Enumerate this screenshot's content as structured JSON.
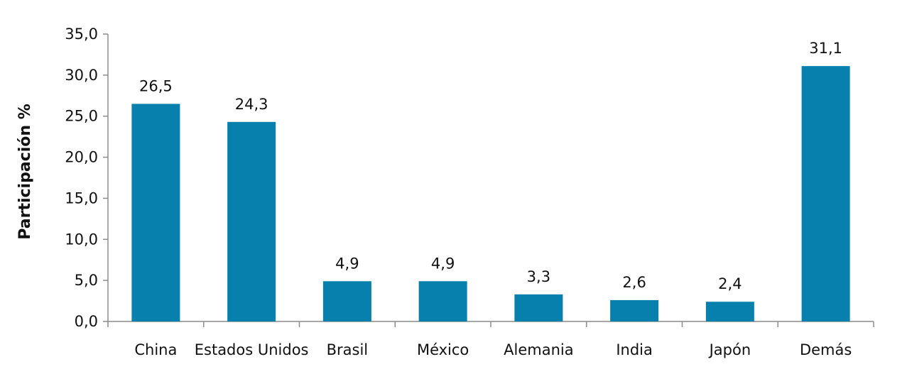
{
  "chart_data": {
    "type": "bar",
    "categories": [
      "China",
      "Estados Unidos",
      "Brasil",
      "México",
      "Alemania",
      "India",
      "Japón",
      "Demás"
    ],
    "values": [
      26.5,
      24.3,
      4.9,
      4.9,
      3.3,
      2.6,
      2.4,
      31.1
    ],
    "data_labels": [
      "26,5",
      "24,3",
      "4,9",
      "4,9",
      "3,3",
      "2,6",
      "2,4",
      "31,1"
    ],
    "title": "",
    "xlabel": "",
    "ylabel": "Participación %",
    "ylim": [
      0,
      35
    ],
    "yticks": [
      0,
      5,
      10,
      15,
      20,
      25,
      30,
      35
    ],
    "ytick_labels": [
      "0,0",
      "5,0",
      "10,0",
      "15,0",
      "20,0",
      "25,0",
      "30,0",
      "35,0"
    ],
    "grid": false,
    "legend": "none",
    "bar_color": "#0880AD"
  }
}
